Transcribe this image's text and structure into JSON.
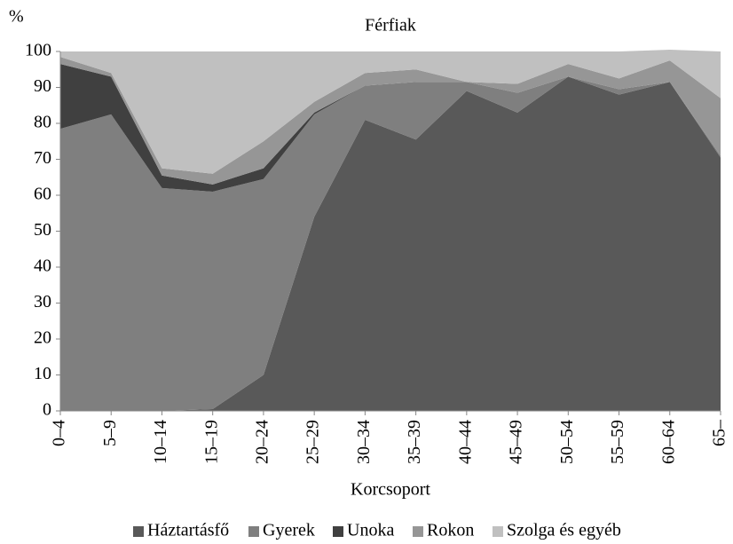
{
  "chart_data": {
    "type": "stacked_area",
    "title": "Férfiak",
    "y_label": "%",
    "x_label": "Korcsoport",
    "categories": [
      "0–4",
      "5–9",
      "10–14",
      "15–19",
      "20–24",
      "25–29",
      "30–34",
      "35–39",
      "40–44",
      "45–49",
      "50–54",
      "55–59",
      "60–64",
      "65–"
    ],
    "series": [
      {
        "name": "Háztartásfő",
        "color": "#595959",
        "values": [
          0,
          0,
          0,
          0.5,
          10,
          54,
          81,
          75.5,
          89,
          83,
          93,
          88,
          91.5,
          70.5
        ]
      },
      {
        "name": "Gyerek",
        "color": "#7f7f7f",
        "values": [
          78.5,
          82.5,
          62,
          60.5,
          54.5,
          28.5,
          9.5,
          16,
          2.5,
          5.5,
          0,
          1.5,
          0,
          0.5
        ]
      },
      {
        "name": "Unoka",
        "color": "#404040",
        "values": [
          18,
          10.5,
          3.5,
          2,
          3,
          0.5,
          0,
          0,
          0,
          0,
          0,
          0,
          0,
          0
        ]
      },
      {
        "name": "Rokon",
        "color": "#969696",
        "values": [
          2,
          1,
          2,
          3,
          7.5,
          3,
          3.5,
          3.5,
          0,
          2.5,
          3.5,
          3,
          6,
          16
        ]
      },
      {
        "name": "Szolga és egyéb",
        "color": "#c0c0c0",
        "values": [
          1.5,
          6,
          32.5,
          34,
          25,
          14,
          6,
          5,
          8.5,
          9,
          3.5,
          7.5,
          3,
          13
        ]
      }
    ],
    "ylim": [
      0,
      100
    ],
    "yticks": [
      0,
      10,
      20,
      30,
      40,
      50,
      60,
      70,
      80,
      90,
      100
    ],
    "grid": false,
    "legend": "bottom"
  }
}
